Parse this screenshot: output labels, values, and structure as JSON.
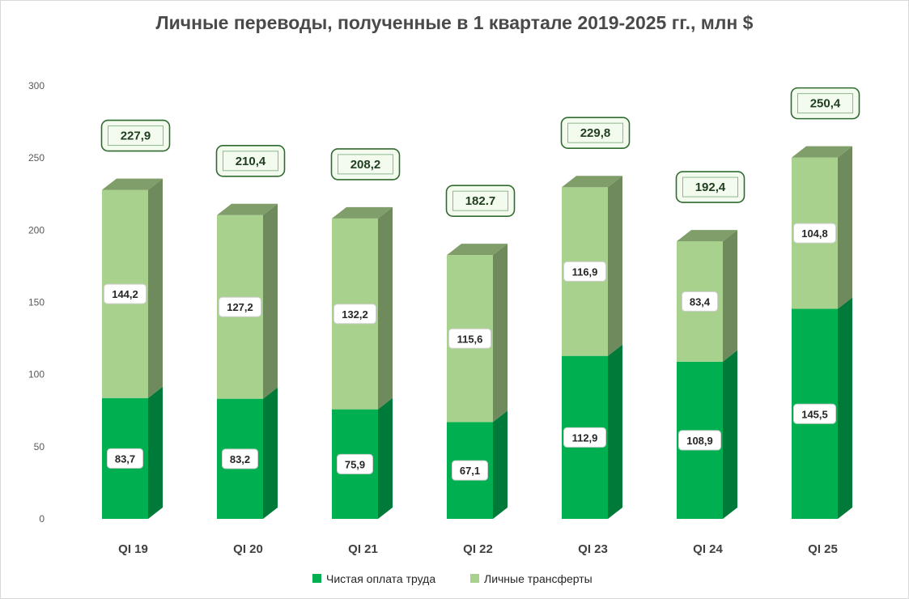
{
  "chart_data": {
    "type": "bar",
    "stacked": true,
    "title": "Личные переводы, полученные в 1 квартале 2019-2025 гг., млн $",
    "categories": [
      "QI 19",
      "QI 20",
      "QI 21",
      "QI 22",
      "QI 23",
      "QI 24",
      "QI 25"
    ],
    "series": [
      {
        "name": "Чистая оплата труда",
        "color": "#00b050",
        "values": [
          83.7,
          83.2,
          75.9,
          67.1,
          112.9,
          108.9,
          145.5
        ],
        "labels": [
          "83,7",
          "83,2",
          "75,9",
          "67,1",
          "112,9",
          "108,9",
          "145,5"
        ]
      },
      {
        "name": "Личные трансферты",
        "color": "#a9d18e",
        "values": [
          144.2,
          127.2,
          132.2,
          115.6,
          116.9,
          83.4,
          104.8
        ],
        "labels": [
          "144,2",
          "127,2",
          "132,2",
          "115,6",
          "116,9",
          "83,4",
          "104,8"
        ]
      }
    ],
    "totals": [
      "227,9",
      "210,4",
      "208,2",
      "182.7",
      "229,8",
      "192,4",
      "250,4"
    ],
    "ylim": [
      0,
      300
    ],
    "yticks": [
      0,
      50,
      100,
      150,
      200,
      250,
      300
    ],
    "xlabel": "",
    "ylabel": "",
    "legend": "bottom",
    "grid": false
  }
}
